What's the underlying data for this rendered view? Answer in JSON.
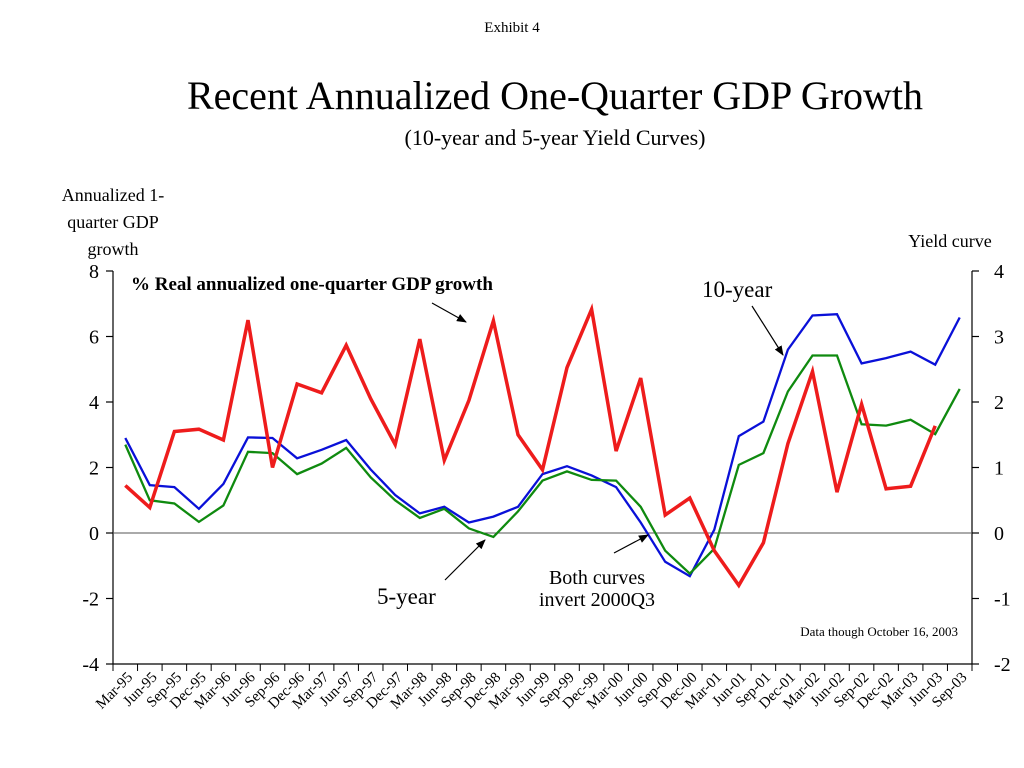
{
  "header": {
    "exhibit": "Exhibit 4"
  },
  "chart_data": {
    "type": "line",
    "title": "Recent Annualized One-Quarter GDP Growth",
    "subtitle": "(10-year and 5-year Yield Curves)",
    "ylabel_left": "Annualized 1-quarter GDP growth",
    "ylabel_right": "Yield curve",
    "ylim_left": [
      -4,
      8
    ],
    "yticks_left": [
      "8",
      "6",
      "4",
      "2",
      "0",
      "-2",
      "-4"
    ],
    "ylim_right": [
      -2,
      4
    ],
    "yticks_right": [
      "4",
      "3",
      "2",
      "1",
      "0",
      "-1",
      "-2"
    ],
    "categories": [
      "Mar-95",
      "Jun-95",
      "Sep-95",
      "Dec-95",
      "Mar-96",
      "Jun-96",
      "Sep-96",
      "Dec-96",
      "Mar-97",
      "Jun-97",
      "Sep-97",
      "Dec-97",
      "Mar-98",
      "Jun-98",
      "Sep-98",
      "Dec-98",
      "Mar-99",
      "Jun-99",
      "Sep-99",
      "Dec-99",
      "Mar-00",
      "Jun-00",
      "Sep-00",
      "Dec-00",
      "Mar-01",
      "Jun-01",
      "Sep-01",
      "Dec-01",
      "Mar-02",
      "Jun-02",
      "Sep-02",
      "Dec-02",
      "Mar-03",
      "Jun-03",
      "Sep-03"
    ],
    "xtick_labels": [
      "Mar-95",
      "Jun-95",
      "Sep-95",
      "Dec-95",
      "Mar-96",
      "Jun-96",
      "Sep-96",
      "Dec-96",
      "Mar-97",
      "Jun-97",
      "Sep-97",
      "Dec-97",
      "Mar-98",
      "Jun-98",
      "Sep-98",
      "Dec-98",
      "Mar-99",
      "Jun-99",
      "Sep-99",
      "Dec-99",
      "Mar-00",
      "Jun-00",
      "Sep-00",
      "Dec-00",
      "Mar-01",
      "Jun-01",
      "Sep-01",
      "Dec-01",
      "Mar-02",
      "Jun-02",
      "Sep-02",
      "Dec-02",
      "Mar-03",
      "Jun-03",
      "Sep-03"
    ],
    "series": [
      {
        "name": "% Real annualized one-quarter GDP growth",
        "axis": "left",
        "color": "#ee1c1c",
        "values": [
          1.45,
          0.78,
          3.1,
          3.17,
          2.84,
          6.5,
          2.0,
          4.55,
          4.28,
          5.73,
          4.1,
          2.7,
          5.92,
          2.22,
          4.05,
          6.48,
          3.0,
          1.93,
          5.05,
          6.83,
          2.5,
          4.73,
          0.55,
          1.07,
          -0.54,
          -1.6,
          -0.3,
          2.73,
          4.93,
          1.25,
          3.93,
          1.35,
          1.43,
          3.27,
          null
        ]
      },
      {
        "name": "10-year",
        "axis": "right",
        "color": "#0a10d8",
        "values": [
          1.45,
          0.73,
          0.7,
          0.37,
          0.75,
          1.46,
          1.45,
          1.14,
          1.27,
          1.42,
          0.97,
          0.58,
          0.3,
          0.4,
          0.16,
          0.25,
          0.4,
          0.9,
          1.02,
          0.88,
          0.7,
          0.16,
          -0.44,
          -0.66,
          0.05,
          1.48,
          1.7,
          2.8,
          3.32,
          3.34,
          2.59,
          2.67,
          2.77,
          2.57,
          3.29
        ]
      },
      {
        "name": "5-year",
        "axis": "right",
        "color": "#0f8a0f",
        "values": [
          1.35,
          0.5,
          0.45,
          0.17,
          0.42,
          1.24,
          1.22,
          0.9,
          1.06,
          1.3,
          0.85,
          0.5,
          0.23,
          0.37,
          0.07,
          -0.06,
          0.33,
          0.8,
          0.94,
          0.81,
          0.8,
          0.4,
          -0.27,
          -0.62,
          -0.24,
          1.04,
          1.22,
          2.16,
          2.71,
          2.71,
          1.66,
          1.64,
          1.73,
          1.51,
          2.2
        ]
      }
    ],
    "annotations": {
      "gdp_label": "% Real annualized one-quarter GDP growth",
      "ten_year_label": "10-year",
      "five_year_label": "5-year",
      "invert_line1": "Both curves",
      "invert_line2": "invert 2000Q3",
      "data_note": "Data though October 16, 2003"
    }
  }
}
